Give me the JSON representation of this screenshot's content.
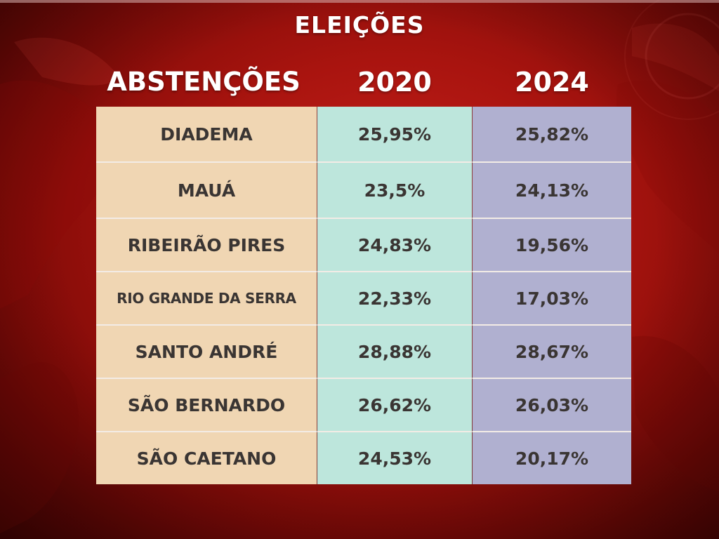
{
  "title": "ELEIÇÕES",
  "header": {
    "label": "ABSTENÇÕES",
    "col_2020": "2020",
    "col_2024": "2024"
  },
  "colors": {
    "background": "#a9140f",
    "name_column": "#f0d6b3",
    "col_2020": "#bde6dc",
    "col_2024": "#b0b0d0",
    "text": "#3a3533"
  },
  "chart_data": {
    "type": "table",
    "title": "ELEIÇÕES",
    "columns": [
      "ABSTENÇÕES",
      "2020",
      "2024"
    ],
    "rows": [
      {
        "city": "DIADEMA",
        "y2020": "25,95%",
        "y2024": "25,82%"
      },
      {
        "city": "MAUÁ",
        "y2020": "23,5%",
        "y2024": "24,13%"
      },
      {
        "city": "RIBEIRÃO PIRES",
        "y2020": "24,83%",
        "y2024": "19,56%"
      },
      {
        "city": "RIO GRANDE DA SERRA",
        "y2020": "22,33%",
        "y2024": "17,03%"
      },
      {
        "city": "SANTO ANDRÉ",
        "y2020": "28,88%",
        "y2024": "28,67%"
      },
      {
        "city": "SÃO BERNARDO",
        "y2020": "26,62%",
        "y2024": "26,03%"
      },
      {
        "city": "SÃO CAETANO",
        "y2020": "24,53%",
        "y2024": "20,17%"
      }
    ]
  }
}
